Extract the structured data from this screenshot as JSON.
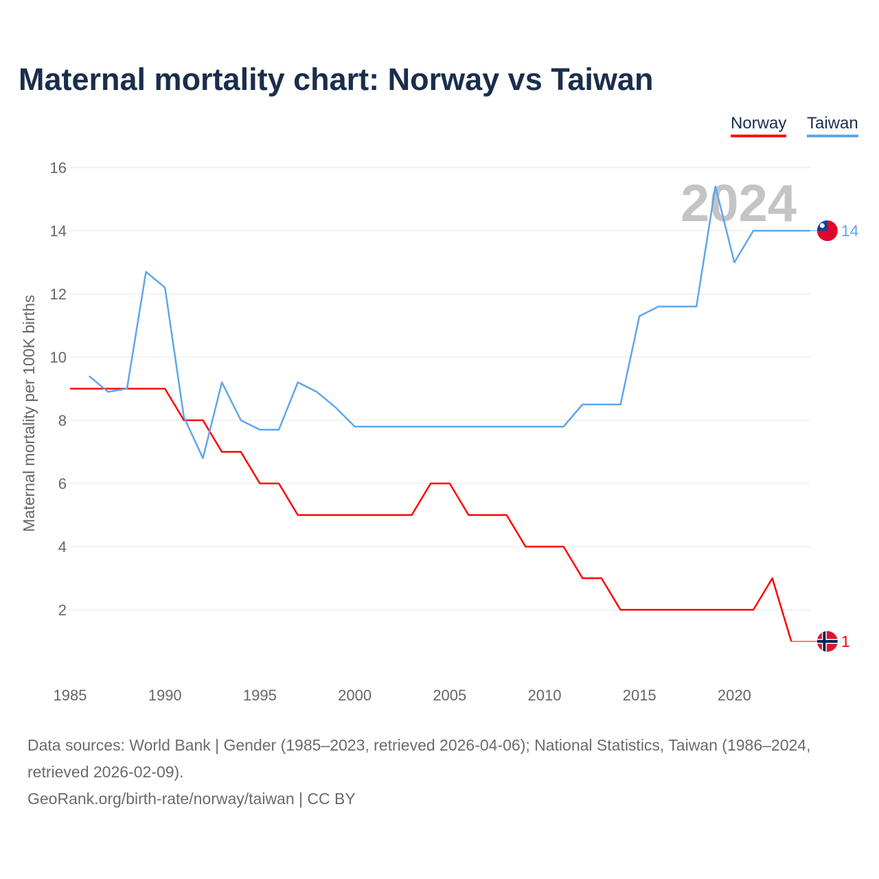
{
  "title": "Maternal mortality chart: Norway vs Taiwan",
  "legend": {
    "norway": "Norway",
    "taiwan": "Taiwan"
  },
  "source": {
    "line1": "Data sources: World Bank | Gender (1985–2023, retrieved 2026-04-06); National Statistics, Taiwan (1986–2024, retrieved 2026-02-09).",
    "line2": "GeoRank.org/birth-rate/norway/taiwan | CC BY"
  },
  "chart_data": {
    "type": "line",
    "title": "Maternal mortality chart: Norway vs Taiwan",
    "xlabel": "",
    "ylabel": "Maternal mortality per 100K births",
    "xlim": [
      1985,
      2024.9
    ],
    "ylim": [
      0,
      16
    ],
    "xticks": [
      "1985",
      "1990",
      "1995",
      "2000",
      "2005",
      "2010",
      "2015",
      "2020"
    ],
    "yticks": [
      "2",
      "4",
      "6",
      "8",
      "10",
      "12",
      "14",
      "16"
    ],
    "grid": true,
    "legend_position": "top-right",
    "year_watermark": "2024",
    "series": [
      {
        "name": "Norway",
        "color": "#ff0000",
        "end_label": "1",
        "x": [
          1985,
          1986,
          1987,
          1988,
          1989,
          1990,
          1991,
          1992,
          1993,
          1994,
          1995,
          1996,
          1997,
          1998,
          1999,
          2000,
          2001,
          2002,
          2003,
          2004,
          2005,
          2006,
          2007,
          2008,
          2009,
          2010,
          2011,
          2012,
          2013,
          2014,
          2015,
          2016,
          2017,
          2018,
          2019,
          2020,
          2021,
          2022,
          2023
        ],
        "values": [
          9,
          9,
          9,
          9,
          9,
          9,
          8,
          8,
          7,
          7,
          6,
          6,
          5,
          5,
          5,
          5,
          5,
          5,
          5,
          6,
          6,
          5,
          5,
          5,
          4,
          4,
          4,
          3,
          3,
          2,
          2,
          2,
          2,
          2,
          2,
          2,
          2,
          3,
          1
        ]
      },
      {
        "name": "Taiwan",
        "color": "#5ea6ec",
        "end_label": "14",
        "x": [
          1986,
          1987,
          1988,
          1989,
          1990,
          1991,
          1992,
          1993,
          1994,
          1995,
          1996,
          1997,
          1998,
          1999,
          2000,
          2001,
          2002,
          2003,
          2004,
          2005,
          2006,
          2007,
          2008,
          2009,
          2010,
          2011,
          2012,
          2013,
          2014,
          2015,
          2016,
          2017,
          2018,
          2019,
          2020,
          2021,
          2022,
          2023,
          2024
        ],
        "values": [
          9.4,
          8.9,
          9.0,
          12.7,
          12.2,
          8.1,
          6.8,
          9.2,
          8.0,
          7.7,
          7.7,
          9.2,
          8.9,
          8.4,
          7.8,
          7.8,
          7.8,
          7.8,
          7.8,
          7.8,
          7.8,
          7.8,
          7.8,
          7.8,
          7.8,
          7.8,
          8.5,
          8.5,
          8.5,
          11.3,
          11.6,
          11.6,
          11.6,
          15.4,
          13.0,
          14.0,
          14.0,
          14.0,
          14.0
        ]
      }
    ]
  }
}
